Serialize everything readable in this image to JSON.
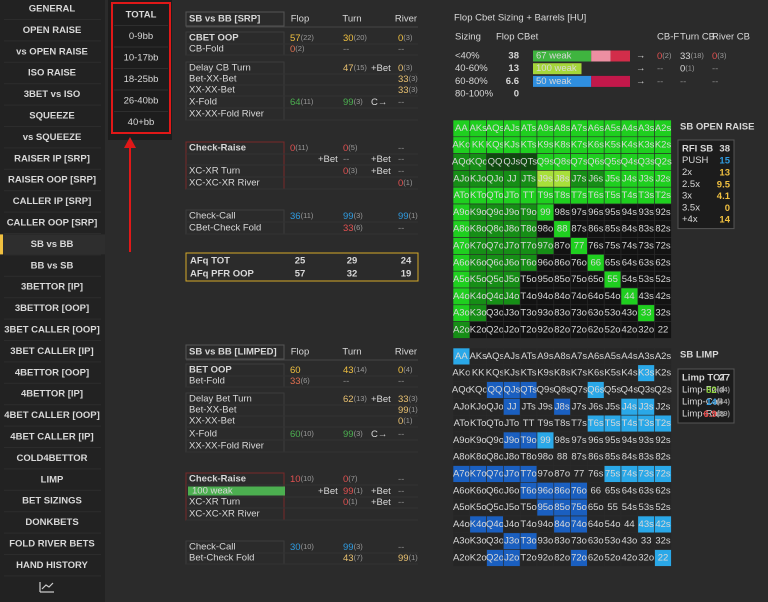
{
  "sidebar": {
    "items": [
      "GENERAL",
      "OPEN RAISE",
      "vs OPEN RAISE",
      "ISO RAISE",
      "3BET vs ISO",
      "SQUEEZE",
      "vs SQUEEZE",
      "RAISER IP [SRP]",
      "RAISER OOP [SRP]",
      "CALLER IP [SRP]",
      "CALLER OOP [SRP]",
      "SB vs BB",
      "BB vs SB",
      "3BETTOR [IP]",
      "3BETTOR [OOP]",
      "3BET CALLER [OOP]",
      "3BET CALLER [IP]",
      "4BETTOR [OOP]",
      "4BETTOR [IP]",
      "4BET CALLER [OOP]",
      "4BET CALLER [IP]",
      "COLD4BETTOR",
      "LIMP",
      "BET SIZINGS",
      "DONKBETS",
      "FOLD RIVER BETS",
      "HAND HISTORY"
    ],
    "active": 11
  },
  "filters": {
    "items": [
      "TOTAL",
      "0-9bb",
      "10-17bb",
      "18-25bb",
      "26-40bb",
      "40+bb"
    ],
    "selected": 0
  },
  "srp": {
    "title": "SB vs BB [SRP]",
    "headers": [
      "Flop",
      "Turn",
      "River"
    ],
    "rows": [
      {
        "label": "CBET OOP",
        "label_color": "#ffffff",
        "color": "#f0c040",
        "cells": [
          [
            "57",
            "(22)"
          ],
          null,
          [
            "30",
            "(20)"
          ],
          null,
          [
            "0",
            "(3)"
          ]
        ]
      },
      {
        "label": "CB-Fold",
        "label_color": "#b0b0b0",
        "color": "#e07050",
        "cells": [
          [
            "0",
            "(2)"
          ],
          null,
          [
            "--"
          ],
          null,
          [
            "--"
          ]
        ]
      },
      {
        "label": "Delay CB Turn",
        "label_color": "#b0b0b0",
        "color": "#e8c070",
        "cells": [
          null,
          null,
          [
            "47",
            "(15)"
          ],
          [
            "+Bet"
          ],
          [
            "0",
            "(3)"
          ]
        ]
      },
      {
        "label": "Bet-XX-Bet",
        "label_color": "#b0b0b0",
        "color": "#e8c070",
        "cells": [
          null,
          null,
          null,
          null,
          [
            "33",
            "(3)"
          ]
        ]
      },
      {
        "label": "XX-XX-Bet",
        "label_color": "#b0b0b0",
        "color": "#e8c070",
        "cells": [
          null,
          null,
          null,
          null,
          [
            "33",
            "(3)"
          ]
        ]
      },
      {
        "label": "X-Fold",
        "label_color": "#b0b0b0",
        "color": "#4caf50",
        "cells": [
          [
            "64",
            "(11)"
          ],
          null,
          [
            "99",
            "(3)"
          ],
          [
            "C→"
          ],
          [
            "--"
          ]
        ]
      },
      {
        "label": "XX-XX-Fold River",
        "label_color": "#b0b0b0",
        "color": "#b0b0b0",
        "cells": [
          null,
          null,
          null,
          null,
          null
        ]
      },
      {
        "label": "Check-Raise",
        "label_color": "#e84848",
        "color": "#e05050",
        "cells": [
          [
            "0",
            "(11)"
          ],
          null,
          [
            "0",
            "(5)"
          ],
          null,
          [
            "--"
          ]
        ]
      },
      {
        "color": "#b0b0b0",
        "cells": [
          null,
          [
            "+Bet"
          ],
          [
            "--"
          ],
          [
            "+Bet"
          ],
          [
            "--"
          ]
        ]
      },
      {
        "label": "XC-XR Turn",
        "label_color": "#b0b0b0",
        "color": "#e05050",
        "cells": [
          null,
          null,
          [
            "0",
            "(3)"
          ],
          [
            "+Bet"
          ],
          [
            "--"
          ]
        ]
      },
      {
        "label": "XC-XC-XR River",
        "label_color": "#b0b0b0",
        "color": "#e05050",
        "cells": [
          null,
          null,
          null,
          null,
          [
            "0",
            "(1)"
          ]
        ]
      },
      {
        "label": "Check-Call",
        "label_color": "#d8d8d8",
        "color": "#2f9be0",
        "cells": [
          [
            "36",
            "(11)"
          ],
          null,
          [
            "99",
            "(3)"
          ],
          null,
          [
            "99",
            "(1)"
          ]
        ]
      },
      {
        "label": "CBet-Check Fold",
        "label_color": "#b0b0b0",
        "color": "#e05050",
        "cells": [
          null,
          null,
          [
            "33",
            "(6)"
          ],
          null,
          [
            "--"
          ]
        ]
      }
    ],
    "afq": [
      {
        "label": "AFq TOT",
        "color": "#e0e0e0",
        "values": [
          "25",
          "29",
          "24"
        ]
      },
      {
        "label": "AFq PFR OOP",
        "color": "#f0c040",
        "values": [
          "57",
          "32",
          "19"
        ]
      }
    ]
  },
  "limped": {
    "title": "SB vs BB [LIMPED]",
    "headers": [
      "Flop",
      "Turn",
      "River"
    ],
    "rows": [
      {
        "label": "BET OOP",
        "label_color": "#ffffff",
        "color": "#f0c040",
        "cells": [
          [
            "60"
          ],
          null,
          [
            "43",
            "(14)"
          ],
          null,
          [
            "0",
            "(4)"
          ]
        ]
      },
      {
        "label": "Bet-Fold",
        "label_color": "#b0b0b0",
        "color": "#e07050",
        "cells": [
          [
            "33",
            "(6)"
          ],
          null,
          [
            "--"
          ],
          null,
          [
            "--"
          ]
        ]
      },
      {
        "label": "Delay Bet Turn",
        "label_color": "#b0b0b0",
        "color": "#e8c070",
        "cells": [
          null,
          null,
          [
            "62",
            "(13)"
          ],
          [
            "+Bet"
          ],
          [
            "33",
            "(3)"
          ]
        ]
      },
      {
        "label": "Bet-XX-Bet",
        "label_color": "#b0b0b0",
        "color": "#e8c070",
        "cells": [
          null,
          null,
          null,
          null,
          [
            "99",
            "(1)"
          ]
        ]
      },
      {
        "label": "XX-XX-Bet",
        "label_color": "#b0b0b0",
        "color": "#e8c070",
        "cells": [
          null,
          null,
          null,
          null,
          [
            "0",
            "(1)"
          ]
        ]
      },
      {
        "label": "X-Fold",
        "label_color": "#b0b0b0",
        "color": "#4caf50",
        "cells": [
          [
            "60",
            "(10)"
          ],
          null,
          [
            "99",
            "(3)"
          ],
          [
            "C→"
          ],
          [
            "--"
          ]
        ]
      },
      {
        "label": "XX-XX-Fold River",
        "label_color": "#b0b0b0",
        "color": "#b0b0b0",
        "cells": [
          null,
          null,
          null,
          null,
          null
        ]
      },
      {
        "label": "Check-Raise",
        "label_color": "#e84848",
        "color": "#e05050",
        "cells": [
          [
            "10",
            "(10)"
          ],
          null,
          [
            "0",
            "(7)"
          ],
          null,
          [
            "--"
          ]
        ]
      },
      {
        "bar": {
          "label": "100 weak",
          "color": "#4caf50"
        },
        "color": "#e05050",
        "cells": [
          null,
          [
            "+Bet"
          ],
          [
            "99",
            "(1)"
          ],
          [
            "+Bet"
          ],
          [
            "--"
          ]
        ]
      },
      {
        "label": "XC-XR Turn",
        "label_color": "#b0b0b0",
        "color": "#e05050",
        "cells": [
          null,
          null,
          [
            "0",
            "(1)"
          ],
          [
            "+Bet"
          ],
          [
            "--"
          ]
        ]
      },
      {
        "label": "XC-XC-XR River",
        "label_color": "#b0b0b0",
        "color": "#e05050",
        "cells": [
          null,
          null,
          null,
          null,
          null
        ]
      },
      {
        "label": "Check-Call",
        "label_color": "#d8d8d8",
        "color": "#2f9be0",
        "cells": [
          [
            "30",
            "(10)"
          ],
          null,
          [
            "99",
            "(3)"
          ],
          null,
          [
            "--"
          ]
        ]
      },
      {
        "label": "Bet-Check Fold",
        "label_color": "#b0b0b0",
        "color": "#e8c070",
        "cells": [
          null,
          null,
          [
            "43",
            "(7)"
          ],
          null,
          [
            "99",
            "(1)"
          ]
        ]
      }
    ]
  },
  "cbet": {
    "title": "Flop Cbet Sizing + Barrels [HU]",
    "headers": [
      "Sizing",
      "Flop CBet",
      "CB-F",
      "Turn CB",
      "River CB"
    ],
    "rows": [
      {
        "sizing": "<40%",
        "cbet": "38",
        "bar": [
          {
            "label": "67 weak",
            "color": "#3fb43f"
          },
          {
            "color": "#ec8fa2"
          },
          {
            "color": "#d22d4a"
          }
        ],
        "arrow": "→",
        "cbf": [
          "0",
          "(2)"
        ],
        "turn": [
          "33",
          "(18)"
        ],
        "river": [
          "0",
          "(3)"
        ]
      },
      {
        "sizing": "40-60%",
        "cbet": "13",
        "bar": [
          {
            "label": "100 weak",
            "color": "#a5d63a"
          }
        ],
        "arrow": "→",
        "cbf": [
          "--"
        ],
        "turn": [
          "0",
          "(1)"
        ],
        "river": [
          "--"
        ]
      },
      {
        "sizing": "60-80%",
        "cbet": "6.6",
        "bar": [
          {
            "label": "50 weak",
            "color": "#2f8fe0"
          },
          {
            "color": "#c2184a"
          }
        ],
        "arrow": "→",
        "cbf": [
          "--"
        ],
        "turn": [
          "--"
        ],
        "river": [
          "--"
        ]
      },
      {
        "sizing": "80-100%",
        "cbet": "0"
      }
    ]
  },
  "hands": [
    [
      "AA",
      "AKs",
      "AQs",
      "AJs",
      "ATs",
      "A9s",
      "A8s",
      "A7s",
      "A6s",
      "A5s",
      "A4s",
      "A3s",
      "A2s"
    ],
    [
      "AKo",
      "KK",
      "KQs",
      "KJs",
      "KTs",
      "K9s",
      "K8s",
      "K7s",
      "K6s",
      "K5s",
      "K4s",
      "K3s",
      "K2s"
    ],
    [
      "AQo",
      "KQo",
      "QQ",
      "QJs",
      "QTs",
      "Q9s",
      "Q8s",
      "Q7s",
      "Q6s",
      "Q5s",
      "Q4s",
      "Q3s",
      "Q2s"
    ],
    [
      "AJo",
      "KJo",
      "QJo",
      "JJ",
      "JTs",
      "J9s",
      "J8s",
      "J7s",
      "J6s",
      "J5s",
      "J4s",
      "J3s",
      "J2s"
    ],
    [
      "ATo",
      "KTo",
      "QTo",
      "JTo",
      "TT",
      "T9s",
      "T8s",
      "T7s",
      "T6s",
      "T5s",
      "T4s",
      "T3s",
      "T2s"
    ],
    [
      "A9o",
      "K9o",
      "Q9o",
      "J9o",
      "T9o",
      "99",
      "98s",
      "97s",
      "96s",
      "95s",
      "94s",
      "93s",
      "92s"
    ],
    [
      "A8o",
      "K8o",
      "Q8o",
      "J8o",
      "T8o",
      "98o",
      "88",
      "87s",
      "86s",
      "85s",
      "84s",
      "83s",
      "82s"
    ],
    [
      "A7o",
      "K7o",
      "Q7o",
      "J7o",
      "T7o",
      "97o",
      "87o",
      "77",
      "76s",
      "75s",
      "74s",
      "73s",
      "72s"
    ],
    [
      "A6o",
      "K6o",
      "Q6o",
      "J6o",
      "T6o",
      "96o",
      "86o",
      "76o",
      "66",
      "65s",
      "64s",
      "63s",
      "62s"
    ],
    [
      "A5o",
      "K5o",
      "Q5o",
      "J5o",
      "T5o",
      "95o",
      "85o",
      "75o",
      "65o",
      "55",
      "54s",
      "53s",
      "52s"
    ],
    [
      "A4o",
      "K4o",
      "Q4o",
      "J4o",
      "T4o",
      "94o",
      "84o",
      "74o",
      "64o",
      "54o",
      "44",
      "43s",
      "42s"
    ],
    [
      "A3o",
      "K3o",
      "Q3o",
      "J3o",
      "T3o",
      "93o",
      "83o",
      "73o",
      "63o",
      "53o",
      "43o",
      "33",
      "32s"
    ],
    [
      "A2o",
      "K2o",
      "Q2o",
      "J2o",
      "T2o",
      "92o",
      "82o",
      "72o",
      "62o",
      "52o",
      "42o",
      "32o",
      "22"
    ]
  ],
  "open_raise": {
    "title": "SB OPEN RAISE",
    "title_color": "#4fd84f",
    "base": "#121212",
    "fills": [
      {
        "color": "#1fcf1f",
        "hands": [
          "AA",
          "AKs",
          "AQs",
          "AJs",
          "ATs",
          "A9s",
          "A8s",
          "A7s",
          "A6s",
          "A5s",
          "A4s",
          "A3s",
          "A2s",
          "AKo",
          "KK",
          "KQs",
          "KJs",
          "KTs",
          "K9s",
          "K8s",
          "K7s",
          "K6s",
          "K5s",
          "K4s",
          "K3s",
          "K2s",
          "Q9s",
          "Q8s",
          "Q7s",
          "Q6s",
          "Q5s",
          "Q4s",
          "Q3s",
          "Q2s",
          "J5s",
          "J4s",
          "J3s",
          "J2s",
          "ATo",
          "KTo",
          "QTo",
          "JTo",
          "TT",
          "T9s",
          "T8s",
          "T7s",
          "T6s",
          "T5s",
          "T4s",
          "T3s",
          "T2s",
          "A9o",
          "A8o",
          "A7o",
          "A6o",
          "A5o",
          "A4o",
          "A3o",
          "99",
          "88",
          "77",
          "66",
          "55",
          "44",
          "33"
        ]
      },
      {
        "color": "#168e16",
        "hands": [
          "AQo",
          "KQo",
          "AJo",
          "KJo",
          "QJo",
          "JJ",
          "JTs",
          "J7s",
          "J6s",
          "K9o",
          "Q9o",
          "J9o",
          "T9o",
          "K8o",
          "Q8o",
          "J8o",
          "T8o",
          "K7o",
          "Q7o",
          "J7o",
          "T7o",
          "97o",
          "K6o",
          "Q6o",
          "J6o",
          "T6o",
          "K5o",
          "Q5o",
          "J5o",
          "K4o",
          "Q4o",
          "J4o",
          "K3o",
          "A2o"
        ]
      },
      {
        "color": "#a8e03a",
        "hands": [
          "J9s",
          "J8s"
        ]
      },
      {
        "color": "#0f4a0f",
        "hands": [
          "QQ",
          "QJs",
          "QTs"
        ]
      }
    ],
    "stats": {
      "title": {
        "label": "RFI SB",
        "value": "38",
        "color": "#2f9be0"
      },
      "rows": [
        {
          "label": "PUSH",
          "value": "15",
          "color": "#2f9be0"
        },
        {
          "label": "2x",
          "value": "13",
          "color": "#f0c040"
        },
        {
          "label": "2.5x",
          "value": "9.5",
          "color": "#f0c040"
        },
        {
          "label": "3x",
          "value": "4.1",
          "color": "#f0c040"
        },
        {
          "label": "3.5x",
          "value": "0",
          "color": "#f0c040"
        },
        {
          "label": "+4x",
          "value": "14",
          "color": "#f0c040"
        }
      ]
    }
  },
  "limp": {
    "title": "SB LIMP",
    "title_color": "#2fa8e8",
    "base": "#262626",
    "fills": [
      {
        "color": "#2aa8e8",
        "hands": [
          "AA",
          "T6s",
          "T5s",
          "T4s",
          "T3s",
          "T2s",
          "99",
          "75s",
          "74s",
          "73s",
          "72s",
          "43s",
          "42s",
          "22",
          "K3s",
          "J3s",
          "J4s",
          "Q6s"
        ]
      },
      {
        "color": "#1a5fc0",
        "hands": [
          "QQ",
          "QJs",
          "QTs",
          "J9o",
          "T9o",
          "A7o",
          "K7o",
          "Q7o",
          "J7o",
          "T7o",
          "T6o",
          "96o",
          "86o",
          "76o",
          "95o",
          "85o",
          "75o",
          "K4o",
          "Q4o",
          "84o",
          "74o",
          "J3o",
          "T3o",
          "Q2o",
          "J2o",
          "72o",
          "JJ",
          "J8s"
        ]
      }
    ],
    "stats": {
      "title": {
        "label": "Limp TOT",
        "value": "27",
        "color": "#ffffff"
      },
      "rows": [
        {
          "label": "Limp-Fold",
          "value": "82",
          "count": "(44)",
          "color": "#8fd43f"
        },
        {
          "label": "Limp-Call",
          "value": "14",
          "count": "(44)",
          "color": "#2f9be0"
        },
        {
          "label": "Limp-Rais",
          "value": "6.9",
          "count": "(29)",
          "color": "#e84848"
        }
      ]
    }
  }
}
